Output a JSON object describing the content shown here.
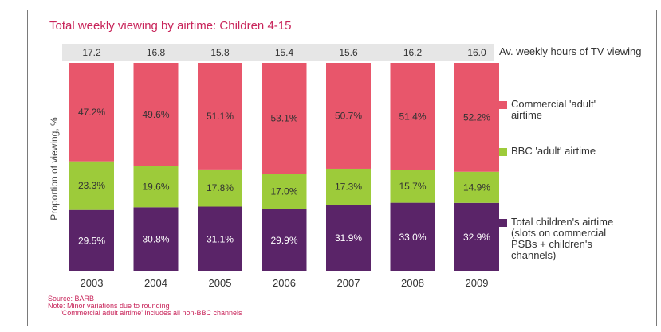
{
  "title": "Total weekly viewing by airtime: Children 4-15",
  "hours_label": "Av. weekly hours of TV viewing",
  "ylabel": "Proportion of viewing, %",
  "legend": [
    {
      "label": "Commercial 'adult' airtime",
      "color": "#e8566b"
    },
    {
      "label": "BBC 'adult' airtime",
      "color": "#9dcb3a"
    },
    {
      "label": "Total children's airtime (slots on commercial PSBs + children's channels)",
      "color": "#5a2468"
    }
  ],
  "notes": {
    "source": "Source: BARB",
    "note1": "Note: Minor variations due to rounding",
    "note2": "'Commercial adult airtime' includes all non-BBC channels"
  },
  "chart_data": {
    "type": "bar",
    "stacked": true,
    "categories": [
      "2003",
      "2004",
      "2005",
      "2006",
      "2007",
      "2008",
      "2009"
    ],
    "weekly_hours": [
      "17.2",
      "16.8",
      "15.8",
      "15.4",
      "15.6",
      "16.2",
      "16.0"
    ],
    "series": [
      {
        "name": "Total children's airtime (slots on commercial PSBs + children's channels)",
        "color": "#5a2468",
        "values": [
          29.5,
          30.8,
          31.1,
          29.9,
          31.9,
          33.0,
          32.9
        ],
        "labels": [
          "29.5%",
          "30.8%",
          "31.1%",
          "29.9%",
          "31.9%",
          "33.0%",
          "32.9%"
        ]
      },
      {
        "name": "BBC 'adult' airtime",
        "color": "#9dcb3a",
        "values": [
          23.3,
          19.6,
          17.8,
          17.0,
          17.3,
          15.7,
          14.9
        ],
        "labels": [
          "23.3%",
          "19.6%",
          "17.8%",
          "17.0%",
          "17.3%",
          "15.7%",
          "14.9%"
        ]
      },
      {
        "name": "Commercial 'adult' airtime",
        "color": "#e8566b",
        "values": [
          47.2,
          49.6,
          51.1,
          53.1,
          50.7,
          51.4,
          52.2
        ],
        "labels": [
          "47.2%",
          "49.6%",
          "51.1%",
          "53.1%",
          "50.7%",
          "51.4%",
          "52.2%"
        ]
      }
    ],
    "ylim": [
      0,
      100
    ],
    "grid": false,
    "legend_position": "right"
  }
}
